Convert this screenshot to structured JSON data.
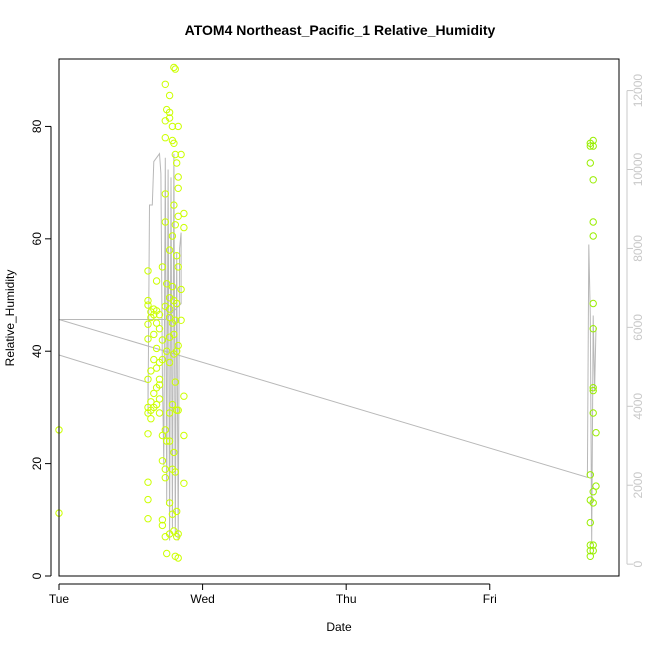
{
  "chart_data": {
    "type": "scatter",
    "title": "ATOM4 Northeast_Pacific_1 Relative_Humidity",
    "xlabel": "Date",
    "ylabel": "Relative_Humidity",
    "x_axis": {
      "range_days": [
        0,
        3.9
      ],
      "ticks": [
        {
          "label": "Tue",
          "value": 0
        },
        {
          "label": "Wed",
          "value": 1
        },
        {
          "label": "Thu",
          "value": 2
        },
        {
          "label": "Fri",
          "value": 3
        }
      ]
    },
    "y_axis_left": {
      "range": [
        0,
        92
      ],
      "ticks": [
        0,
        20,
        40,
        60,
        80
      ]
    },
    "y_axis_right": {
      "range": [
        -300,
        12800
      ],
      "ticks": [
        0,
        2000,
        4000,
        6000,
        8000,
        10000,
        12000
      ],
      "color": "#c8c8c8"
    },
    "colors": {
      "points": "#ccff00",
      "points_late": "#99ee00",
      "line": "#b8b8b8",
      "axis": "#000000"
    },
    "series": [
      {
        "type": "points",
        "axis": "left",
        "points": [
          [
            0.0,
            26.0
          ],
          [
            0.0,
            11.2
          ],
          [
            0.62,
            54.3
          ],
          [
            0.62,
            49.0
          ],
          [
            0.62,
            48.2
          ],
          [
            0.62,
            44.8
          ],
          [
            0.62,
            42.2
          ],
          [
            0.62,
            35.0
          ],
          [
            0.62,
            30.0
          ],
          [
            0.62,
            29.0
          ],
          [
            0.62,
            25.3
          ],
          [
            0.62,
            16.7
          ],
          [
            0.62,
            13.6
          ],
          [
            0.62,
            10.2
          ],
          [
            0.64,
            47.0
          ],
          [
            0.64,
            46.0
          ],
          [
            0.64,
            36.5
          ],
          [
            0.64,
            31.0
          ],
          [
            0.64,
            29.5
          ],
          [
            0.64,
            28.0
          ],
          [
            0.66,
            47.5
          ],
          [
            0.66,
            46.5
          ],
          [
            0.66,
            43.0
          ],
          [
            0.66,
            38.5
          ],
          [
            0.66,
            32.5
          ],
          [
            0.66,
            30.0
          ],
          [
            0.68,
            52.5
          ],
          [
            0.68,
            47.2
          ],
          [
            0.68,
            45.0
          ],
          [
            0.68,
            40.5
          ],
          [
            0.68,
            37.0
          ],
          [
            0.68,
            33.5
          ],
          [
            0.68,
            30.5
          ],
          [
            0.7,
            46.5
          ],
          [
            0.7,
            44.0
          ],
          [
            0.7,
            38.0
          ],
          [
            0.7,
            35.0
          ],
          [
            0.7,
            34.0
          ],
          [
            0.7,
            31.5
          ],
          [
            0.7,
            29.0
          ],
          [
            0.72,
            55.0
          ],
          [
            0.72,
            42.0
          ],
          [
            0.72,
            38.5
          ],
          [
            0.72,
            25.0
          ],
          [
            0.72,
            20.5
          ],
          [
            0.72,
            10.0
          ],
          [
            0.72,
            9.0
          ],
          [
            0.74,
            87.5
          ],
          [
            0.74,
            81.0
          ],
          [
            0.74,
            78.0
          ],
          [
            0.74,
            68.0
          ],
          [
            0.74,
            63.0
          ],
          [
            0.74,
            48.0
          ],
          [
            0.74,
            26.0
          ],
          [
            0.74,
            19.0
          ],
          [
            0.74,
            17.5
          ],
          [
            0.74,
            7.0
          ],
          [
            0.75,
            83.0
          ],
          [
            0.75,
            52.0
          ],
          [
            0.75,
            40.0
          ],
          [
            0.75,
            24.0
          ],
          [
            0.75,
            4.0
          ],
          [
            0.77,
            85.5
          ],
          [
            0.77,
            82.5
          ],
          [
            0.77,
            81.5
          ],
          [
            0.77,
            58.0
          ],
          [
            0.77,
            49.5
          ],
          [
            0.77,
            47.5
          ],
          [
            0.77,
            46.0
          ],
          [
            0.77,
            42.5
          ],
          [
            0.77,
            38.0
          ],
          [
            0.77,
            29.0
          ],
          [
            0.77,
            24.0
          ],
          [
            0.77,
            13.0
          ],
          [
            0.77,
            7.5
          ],
          [
            0.79,
            80.0
          ],
          [
            0.79,
            77.5
          ],
          [
            0.79,
            60.5
          ],
          [
            0.79,
            51.5
          ],
          [
            0.79,
            45.0
          ],
          [
            0.79,
            30.5
          ],
          [
            0.79,
            19.0
          ],
          [
            0.79,
            11.0
          ],
          [
            0.8,
            90.5
          ],
          [
            0.8,
            77.0
          ],
          [
            0.8,
            66.0
          ],
          [
            0.8,
            49.0
          ],
          [
            0.8,
            43.0
          ],
          [
            0.8,
            39.5
          ],
          [
            0.8,
            22.0
          ],
          [
            0.8,
            8.0
          ],
          [
            0.81,
            90.2
          ],
          [
            0.81,
            75.0
          ],
          [
            0.81,
            62.5
          ],
          [
            0.81,
            45.5
          ],
          [
            0.81,
            34.5
          ],
          [
            0.81,
            18.5
          ],
          [
            0.81,
            3.5
          ],
          [
            0.82,
            73.5
          ],
          [
            0.82,
            57.0
          ],
          [
            0.82,
            48.5
          ],
          [
            0.82,
            40.0
          ],
          [
            0.82,
            29.5
          ],
          [
            0.82,
            11.5
          ],
          [
            0.82,
            7.0
          ],
          [
            0.83,
            80.0
          ],
          [
            0.83,
            71.0
          ],
          [
            0.83,
            69.0
          ],
          [
            0.83,
            64.0
          ],
          [
            0.83,
            55.0
          ],
          [
            0.83,
            41.0
          ],
          [
            0.83,
            29.5
          ],
          [
            0.83,
            7.5
          ],
          [
            0.83,
            3.2
          ],
          [
            0.85,
            75.0
          ],
          [
            0.85,
            51.0
          ],
          [
            0.85,
            45.5
          ],
          [
            0.87,
            64.5
          ],
          [
            0.87,
            62.0
          ],
          [
            0.87,
            32.0
          ],
          [
            0.87,
            25.0
          ],
          [
            0.87,
            16.5
          ],
          [
            3.7,
            77.0
          ],
          [
            3.7,
            76.5
          ],
          [
            3.7,
            73.5
          ],
          [
            3.7,
            18.0
          ],
          [
            3.7,
            13.5
          ],
          [
            3.7,
            9.5
          ],
          [
            3.7,
            5.5
          ],
          [
            3.7,
            4.5
          ],
          [
            3.7,
            3.5
          ],
          [
            3.72,
            77.5
          ],
          [
            3.72,
            76.5
          ],
          [
            3.72,
            70.5
          ],
          [
            3.72,
            63.0
          ],
          [
            3.72,
            60.5
          ],
          [
            3.72,
            48.5
          ],
          [
            3.72,
            44.0
          ],
          [
            3.72,
            33.5
          ],
          [
            3.72,
            33.0
          ],
          [
            3.72,
            29.0
          ],
          [
            3.72,
            15.0
          ],
          [
            3.72,
            13.0
          ],
          [
            3.72,
            5.5
          ],
          [
            3.72,
            4.5
          ],
          [
            3.74,
            25.5
          ],
          [
            3.74,
            16.0
          ]
        ]
      },
      {
        "type": "line",
        "axis": "right",
        "points": [
          [
            0.0,
            6200
          ],
          [
            0.0,
            5300
          ],
          [
            0.62,
            4600
          ],
          [
            0.62,
            3800
          ],
          [
            0.63,
            9100
          ],
          [
            0.64,
            9100
          ],
          [
            0.65,
            9100
          ],
          [
            0.66,
            10200
          ],
          [
            0.7,
            10400
          ],
          [
            0.71,
            9900
          ],
          [
            0.72,
            4800
          ],
          [
            0.73,
            2500
          ],
          [
            0.74,
            10300
          ],
          [
            0.75,
            1500
          ],
          [
            0.76,
            10000
          ],
          [
            0.77,
            600
          ],
          [
            0.78,
            9800
          ],
          [
            0.79,
            900
          ],
          [
            0.8,
            10400
          ],
          [
            0.81,
            700
          ],
          [
            0.82,
            7900
          ],
          [
            0.83,
            600
          ],
          [
            0.84,
            8000
          ],
          [
            0.85,
            8400
          ],
          [
            0.85,
            6600
          ],
          [
            0.74,
            6200
          ],
          [
            0.0,
            6200
          ],
          [
            3.68,
            2200
          ],
          [
            3.69,
            8100
          ],
          [
            3.7,
            6300
          ],
          [
            3.71,
            500
          ],
          [
            3.72,
            6300
          ],
          [
            3.73,
            4400
          ],
          [
            3.74,
            6000
          ]
        ]
      }
    ]
  }
}
